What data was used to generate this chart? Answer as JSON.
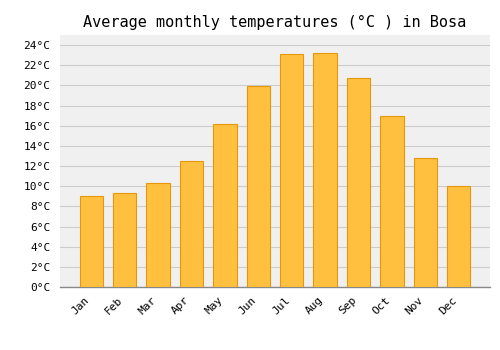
{
  "title": "Average monthly temperatures (°C ) in Bosa",
  "months": [
    "Jan",
    "Feb",
    "Mar",
    "Apr",
    "May",
    "Jun",
    "Jul",
    "Aug",
    "Sep",
    "Oct",
    "Nov",
    "Dec"
  ],
  "temperatures": [
    9.0,
    9.3,
    10.3,
    12.5,
    16.2,
    19.9,
    23.1,
    23.2,
    20.7,
    17.0,
    12.8,
    10.0
  ],
  "bar_color": "#FFC040",
  "bar_edge_color": "#E8960A",
  "background_color": "#FFFFFF",
  "plot_bg_color": "#F0F0F0",
  "grid_color": "#CCCCCC",
  "ylim": [
    0,
    25
  ],
  "title_fontsize": 11,
  "tick_fontsize": 8,
  "font_family": "monospace"
}
